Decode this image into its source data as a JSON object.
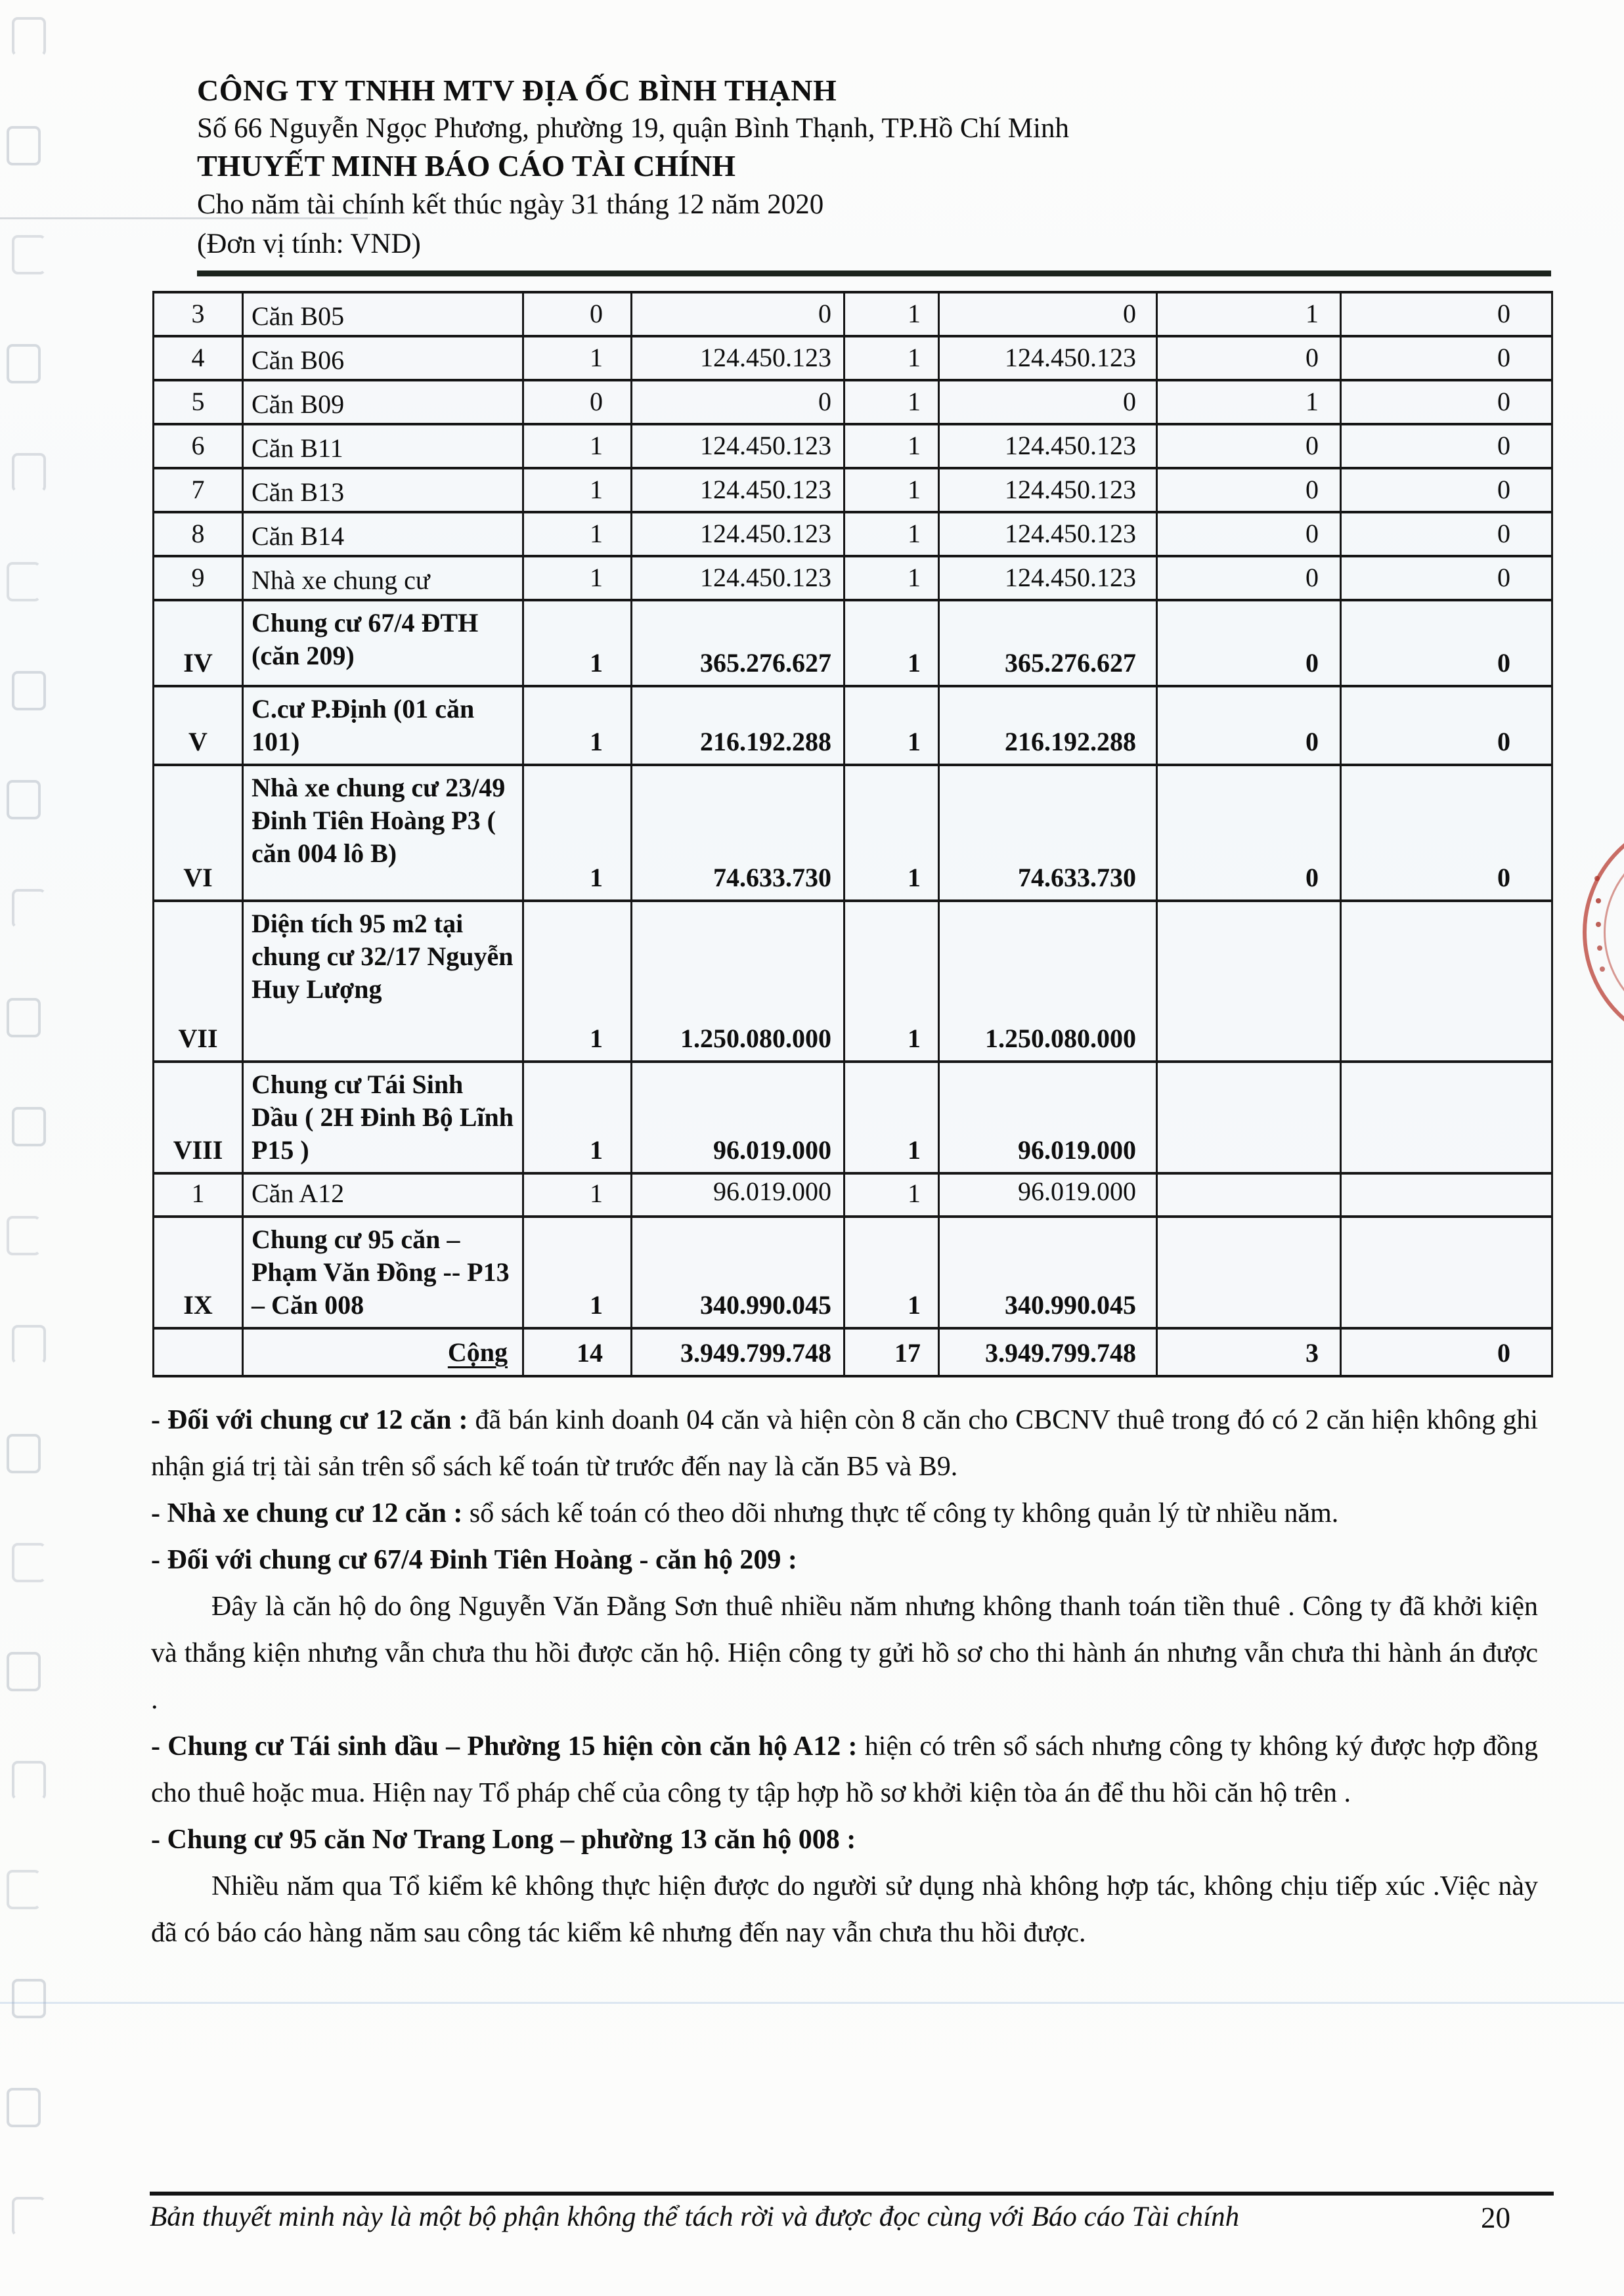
{
  "header": {
    "company": "CÔNG TY TNHH MTV ĐỊA ỐC BÌNH THẠNH",
    "address": "Số 66 Nguyễn Ngọc Phương, phường 19, quận Bình Thạnh, TP.Hồ Chí Minh",
    "report_title": "THUYẾT MINH BÁO CÁO TÀI CHÍNH",
    "period": "Cho năm tài chính kết thúc ngày 31 tháng 12 năm 2020",
    "unit": "(Đơn vị tính: VND)"
  },
  "table": {
    "rows": [
      {
        "kind": "s",
        "bold": false,
        "stt": "3",
        "name": "Căn B05",
        "c1": "0",
        "c2": "0",
        "c3": "1",
        "c4": "0",
        "c5": "1",
        "c6": "0"
      },
      {
        "kind": "s",
        "bold": false,
        "stt": "4",
        "name": "Căn B06",
        "c1": "1",
        "c2": "124.450.123",
        "c3": "1",
        "c4": "124.450.123",
        "c5": "0",
        "c6": "0"
      },
      {
        "kind": "s",
        "bold": false,
        "stt": "5",
        "name": "Căn B09",
        "c1": "0",
        "c2": "0",
        "c3": "1",
        "c4": "0",
        "c5": "1",
        "c6": "0"
      },
      {
        "kind": "s",
        "bold": false,
        "stt": "6",
        "name": "Căn B11",
        "c1": "1",
        "c2": "124.450.123",
        "c3": "1",
        "c4": "124.450.123",
        "c5": "0",
        "c6": "0"
      },
      {
        "kind": "s",
        "bold": false,
        "stt": "7",
        "name": "Căn B13",
        "c1": "1",
        "c2": "124.450.123",
        "c3": "1",
        "c4": "124.450.123",
        "c5": "0",
        "c6": "0"
      },
      {
        "kind": "s",
        "bold": false,
        "stt": "8",
        "name": "Căn B14",
        "c1": "1",
        "c2": "124.450.123",
        "c3": "1",
        "c4": "124.450.123",
        "c5": "0",
        "c6": "0"
      },
      {
        "kind": "s",
        "bold": false,
        "stt": "9",
        "name": "Nhà xe chung cư",
        "c1": "1",
        "c2": "124.450.123",
        "c3": "1",
        "c4": "124.450.123",
        "c5": "0",
        "c6": "0"
      },
      {
        "kind": "iv",
        "bold": true,
        "stt": "IV",
        "name": "Chung cư 67/4 ĐTH (căn 209)",
        "c1": "1",
        "c2": "365.276.627",
        "c3": "1",
        "c4": "365.276.627",
        "c5": "0",
        "c6": "0"
      },
      {
        "kind": "v",
        "bold": true,
        "stt": "V",
        "name": "C.cư  P.Định (01 căn 101)",
        "c1": "1",
        "c2": "216.192.288",
        "c3": "1",
        "c4": "216.192.288",
        "c5": "0",
        "c6": "0"
      },
      {
        "kind": "vi",
        "bold": true,
        "stt": "VI",
        "name": "Nhà xe chung cư 23/49 Đinh Tiên Hoàng P3 ( căn 004 lô B)",
        "c1": "1",
        "c2": "74.633.730",
        "c3": "1",
        "c4": "74.633.730",
        "c5": "0",
        "c6": "0"
      },
      {
        "kind": "vii",
        "bold": true,
        "stt": "VII",
        "name": "Diện tích 95 m2 tại chung cư 32/17 Nguyễn Huy Lượng",
        "c1": "1",
        "c2": "1.250.080.000",
        "c3": "1",
        "c4": "1.250.080.000",
        "c5": "",
        "c6": ""
      },
      {
        "kind": "viii",
        "bold": true,
        "stt": "VIII",
        "name": "Chung cư Tái Sinh Dầu ( 2H Đinh Bộ Lĩnh P15 )",
        "c1": "1",
        "c2": "96.019.000",
        "c3": "1",
        "c4": "96.019.000",
        "c5": "",
        "c6": ""
      },
      {
        "kind": "a12",
        "bold": false,
        "stt": "1",
        "name": "Căn A12",
        "c1": "1",
        "c2": "96.019.000",
        "c3": "1",
        "c4": "96.019.000",
        "c5": "",
        "c6": ""
      },
      {
        "kind": "ix",
        "bold": true,
        "stt": "IX",
        "name": "Chung cư 95 căn – Phạm Văn Đồng -- P13 – Căn 008",
        "c1": "1",
        "c2": "340.990.045",
        "c3": "1",
        "c4": "340.990.045",
        "c5": "",
        "c6": ""
      },
      {
        "kind": "cong",
        "bold": true,
        "stt": "",
        "name": "Cộng",
        "c1": "14",
        "c2": "3.949.799.748",
        "c3": "17",
        "c4": "3.949.799.748",
        "c5": "3",
        "c6": "0"
      }
    ]
  },
  "paragraphs": [
    {
      "indent": false,
      "segments": [
        {
          "b": true,
          "t": "- Đối với chung cư 12 căn : "
        },
        {
          "b": false,
          "t": "đã bán kinh doanh 04 căn và hiện còn 8 căn cho CBCNV thuê trong đó có 2 căn hiện không ghi nhận giá trị tài sản trên sổ sách kế toán từ trước đến nay là căn B5 và B9."
        }
      ]
    },
    {
      "indent": false,
      "segments": [
        {
          "b": true,
          "t": "- Nhà xe chung cư 12 căn : "
        },
        {
          "b": false,
          "t": "sổ sách kế toán có theo dõi nhưng thực tế công ty không quản lý từ nhiều năm."
        }
      ]
    },
    {
      "indent": false,
      "segments": [
        {
          "b": true,
          "t": "- Đối với  chung cư 67/4 Đinh Tiên Hoàng - căn hộ 209 :"
        }
      ]
    },
    {
      "indent": true,
      "segments": [
        {
          "b": false,
          "t": "Đây là căn hộ do ông Nguyễn Văn Đằng Sơn thuê nhiều năm nhưng không thanh toán tiền thuê . Công ty đã khởi kiện và thắng kiện nhưng vẫn chưa thu hồi được căn hộ. Hiện công ty gửi hồ sơ cho thi hành án nhưng vẫn chưa thi hành án được  ."
        }
      ]
    },
    {
      "indent": false,
      "segments": [
        {
          "b": true,
          "t": "- Chung cư Tái sinh dầu – Phường 15 hiện còn căn hộ A12 : "
        },
        {
          "b": false,
          "t": "hiện có trên sổ sách nhưng công ty không ký được hợp đồng cho thuê hoặc mua. Hiện nay Tổ pháp chế của công ty tập hợp hồ sơ khởi kiện tòa án để thu hồi căn hộ trên ."
        }
      ]
    },
    {
      "indent": false,
      "segments": [
        {
          "b": true,
          "t": "- Chung cư 95 căn Nơ Trang Long – phường 13 căn hộ 008 :"
        }
      ]
    },
    {
      "indent": true,
      "segments": [
        {
          "b": false,
          "t": "Nhiều năm qua Tổ kiểm kê không thực hiện được do người sử dụng nhà không hợp tác, không chịu tiếp xúc .Việc này đã có báo cáo hàng năm sau công tác kiểm kê nhưng đến nay vẫn chưa thu hồi được."
        }
      ]
    }
  ],
  "footer": {
    "note": "Bản thuyết minh này là một bộ phận không thể tách rời và được đọc cùng với Báo cáo Tài chính",
    "page_number": "20"
  },
  "stamp_color": "#b63529"
}
